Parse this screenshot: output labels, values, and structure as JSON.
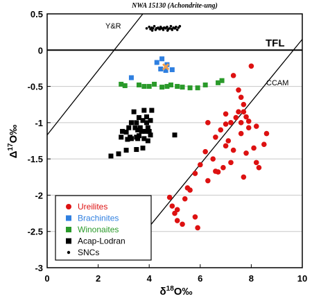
{
  "chart_data": {
    "type": "scatter",
    "title": "NWA 15130 (Achondrite-ung)",
    "xlabel_main": "δ",
    "xlabel_sup": "18",
    "xlabel_rest": "O‰",
    "ylabel_main": "Δ",
    "ylabel_sup": "17",
    "ylabel_rest": "O‰",
    "xlim": [
      0,
      10
    ],
    "ylim": [
      -3,
      0.5
    ],
    "x_ticks": [
      "0",
      "2",
      "4",
      "6",
      "8",
      "10"
    ],
    "y_ticks": [
      "0.5",
      "0",
      "-0.5",
      "-1",
      "-1.5",
      "-2",
      "-2.5",
      "-3"
    ],
    "grid": "horizontal",
    "reference_lines": [
      {
        "name": "TFL",
        "x": [
          0,
          10
        ],
        "y": [
          0,
          0
        ]
      },
      {
        "name": "Y&R",
        "x": [
          0,
          3.75
        ],
        "y": [
          -1.17,
          0.5
        ]
      },
      {
        "name": "CCAM",
        "x": [
          3.85,
          10
        ],
        "y": [
          -2.5,
          0.15
        ]
      }
    ],
    "legend_position": "bottom-left",
    "colors": {
      "Ureilites": "#dd1111",
      "Brachinites": "#2f7fe0",
      "Winonaites": "#2a9a2a",
      "Acap-Lodran": "#000000",
      "SNCs": "#000000",
      "sample": "#f0a050"
    },
    "series": [
      {
        "name": "Ureilites",
        "marker": "circle",
        "x": [
          8.0,
          7.3,
          7.5,
          7.6,
          7.7,
          7.7,
          7.5,
          7.0,
          7.4,
          7.8,
          7.9,
          7.6,
          8.2,
          8.6,
          7.9,
          7.2,
          7.0,
          6.8,
          6.6,
          7.6,
          7.1,
          8.5,
          8.1,
          6.3,
          7.0,
          7.8,
          7.3,
          6.2,
          6.5,
          7.2,
          6.9,
          6.7,
          8.3,
          7.7,
          8.2,
          6.0,
          5.8,
          6.3,
          5.5,
          5.6,
          5.4,
          6.6,
          5.1,
          4.9,
          5.0,
          5.8,
          5.1,
          5.3,
          5.9,
          4.8
        ],
        "y": [
          -0.22,
          -0.35,
          -0.55,
          -0.65,
          -0.75,
          -0.85,
          -0.85,
          -0.88,
          -0.93,
          -0.92,
          -0.98,
          -1.0,
          -1.05,
          -1.15,
          -1.07,
          -1.0,
          -1.02,
          -1.1,
          -1.2,
          -1.15,
          -1.25,
          -1.3,
          -1.35,
          -1.0,
          -1.32,
          -1.42,
          -1.38,
          -1.4,
          -1.5,
          -1.55,
          -1.62,
          -1.68,
          -1.62,
          -1.75,
          -1.55,
          -1.58,
          -1.7,
          -1.8,
          -1.9,
          -1.93,
          -2.05,
          -1.67,
          -2.2,
          -2.15,
          -2.25,
          -2.3,
          -2.35,
          -2.4,
          -2.45,
          -2.03
        ]
      },
      {
        "name": "Brachinites",
        "marker": "square",
        "x": [
          4.3,
          4.5,
          4.7,
          4.9,
          4.45,
          4.65,
          3.3
        ],
        "y": [
          -0.17,
          -0.12,
          -0.2,
          -0.27,
          -0.26,
          -0.28,
          -0.38
        ]
      },
      {
        "name": "Winonaites",
        "marker": "square",
        "x": [
          2.9,
          3.05,
          3.6,
          3.8,
          4.0,
          4.2,
          4.5,
          4.7,
          4.85,
          5.1,
          5.3,
          5.6,
          5.9,
          6.2,
          6.7,
          6.85
        ],
        "y": [
          -0.47,
          -0.49,
          -0.48,
          -0.5,
          -0.5,
          -0.47,
          -0.51,
          -0.5,
          -0.48,
          -0.5,
          -0.51,
          -0.52,
          -0.52,
          -0.48,
          -0.45,
          -0.42
        ]
      },
      {
        "name": "Acap-Lodran",
        "marker": "square",
        "x": [
          3.4,
          3.8,
          4.1,
          3.6,
          3.9,
          3.3,
          3.5,
          3.75,
          3.9,
          4.05,
          3.2,
          3.45,
          3.65,
          3.95,
          2.95,
          3.1,
          3.55,
          3.7,
          3.85,
          4.0,
          3.25,
          3.5,
          3.6,
          4.05,
          2.9,
          3.15,
          3.3,
          3.55,
          3.95,
          3.8,
          3.75,
          3.5,
          3.1,
          2.8,
          2.5,
          5.0
        ],
        "y": [
          -0.85,
          -0.83,
          -0.83,
          -0.93,
          -0.92,
          -1.0,
          -1.0,
          -0.97,
          -1.0,
          -0.97,
          -1.07,
          -1.07,
          -1.07,
          -1.07,
          -1.12,
          -1.13,
          -1.1,
          -1.12,
          -1.12,
          -1.12,
          -1.2,
          -1.2,
          -1.18,
          -1.17,
          -1.2,
          -1.23,
          -1.22,
          -1.22,
          -1.25,
          -1.22,
          -1.35,
          -1.37,
          -1.38,
          -1.43,
          -1.46,
          -1.17
        ]
      },
      {
        "name": "SNCs",
        "marker": "dot",
        "x": [
          3.9,
          4.0,
          4.05,
          4.1,
          4.15,
          4.2,
          4.25,
          4.3,
          4.35,
          4.4,
          4.45,
          4.5,
          4.55,
          4.6,
          4.65,
          4.7,
          4.75,
          4.8,
          4.85,
          4.9,
          4.95,
          5.0,
          5.05,
          5.1,
          5.15,
          4.12,
          4.28,
          4.42,
          4.58,
          4.72,
          4.88,
          5.02,
          5.2
        ],
        "y": [
          0.3,
          0.32,
          0.29,
          0.31,
          0.3,
          0.33,
          0.28,
          0.3,
          0.31,
          0.29,
          0.32,
          0.3,
          0.28,
          0.31,
          0.3,
          0.32,
          0.29,
          0.3,
          0.33,
          0.28,
          0.31,
          0.3,
          0.32,
          0.28,
          0.31,
          0.27,
          0.3,
          0.29,
          0.31,
          0.27,
          0.29,
          0.3,
          0.33
        ]
      }
    ],
    "highlight_point": {
      "marker": "x",
      "x": 4.65,
      "y": -0.23
    }
  }
}
